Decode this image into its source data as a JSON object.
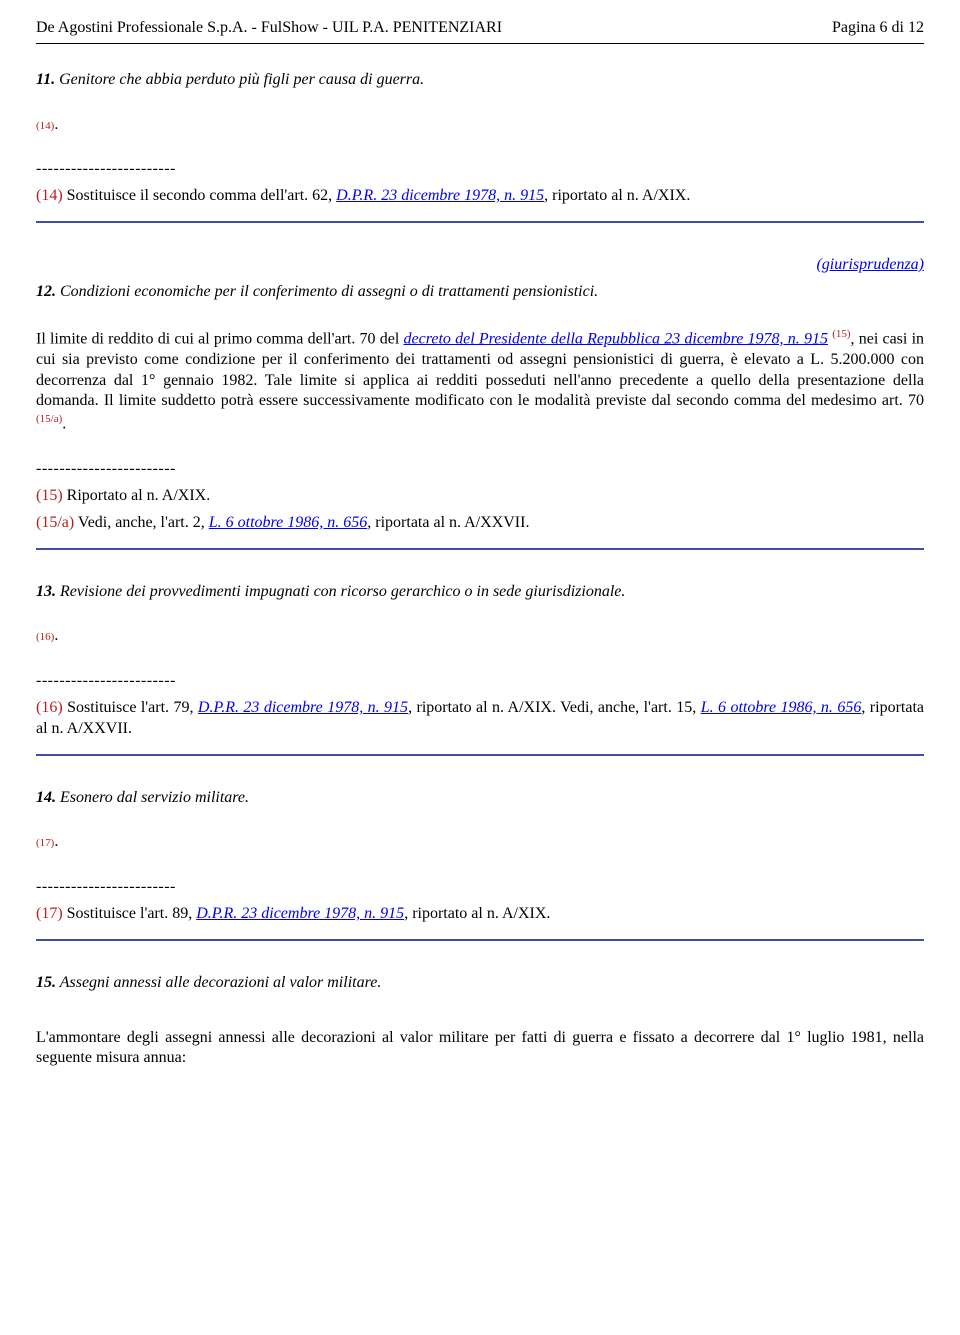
{
  "header": {
    "title_left": "De Agostini Professionale S.p.A. - FulShow - UIL P.A. PENITENZIARI",
    "title_right": "Pagina 6 di 12"
  },
  "dashes": "------------------------",
  "giur": "(giurisprudenza)",
  "sec11": {
    "num": "11.",
    "title": " Genitore che abbia perduto più figli per causa di guerra.",
    "ref14": "(14)",
    "dot": ".",
    "note14_a": "(14)",
    "note14_b": " Sostituisce il secondo comma dell'art. 62, ",
    "note14_link": "D.P.R. 23 dicembre 1978, n. 915",
    "note14_c": ", riportato al n. A/XIX."
  },
  "sec12": {
    "num": "12.",
    "title": " Condizioni economiche per il conferimento di assegni o di trattamenti pensionistici.",
    "body_a": "Il limite di reddito di cui al primo comma dell'art. 70 del ",
    "body_link1": "decreto del Presidente della Repubblica 23 dicembre 1978, n. 915",
    "body_b": " ",
    "sup15": "(15)",
    "body_c": ", nei casi in cui sia previsto come condizione per il conferimento dei trattamenti od assegni pensionistici di guerra, è elevato a L. 5.200.000 con decorrenza dal 1° gennaio 1982. Tale limite si applica ai redditi posseduti nell'anno precedente a quello della presentazione della domanda. Il limite suddetto potrà essere successivamente modificato con le modalità previste dal secondo comma del medesimo art. 70 ",
    "sup15a": "(15/a)",
    "body_d": ".",
    "note15_a": "(15)",
    "note15_b": " Riportato al n. A/XIX.",
    "note15a_a": "(15/a)",
    "note15a_b": " Vedi, anche, l'art. 2, ",
    "note15a_link": "L. 6 ottobre 1986, n. 656",
    "note15a_c": ", riportata al n. A/XXVII."
  },
  "sec13": {
    "num": "13.",
    "title": " Revisione dei provvedimenti impugnati con ricorso gerarchico o in sede giurisdizionale.",
    "ref16": "(16)",
    "dot": ".",
    "note16_a": "(16)",
    "note16_b": " Sostituisce l'art. 79, ",
    "note16_link1": "D.P.R. 23 dicembre 1978, n. 915",
    "note16_c": ", riportato al n. A/XIX. Vedi, anche, l'art. 15, ",
    "note16_link2": "L. 6 ottobre 1986, n. 656",
    "note16_d": ", riportata al n. A/XXVII."
  },
  "sec14": {
    "num": "14.",
    "title": " Esonero dal servizio militare.",
    "ref17": "(17)",
    "dot": ".",
    "note17_a": "(17)",
    "note17_b": " Sostituisce l'art. 89, ",
    "note17_link": "D.P.R. 23 dicembre 1978, n. 915",
    "note17_c": ", riportato al n. A/XIX."
  },
  "sec15": {
    "num": "15.",
    "title": " Assegni annessi alle decorazioni al valor militare.",
    "body": "L'ammontare degli assegni annessi alle decorazioni al valor militare per fatti di guerra e fissato a decorrere dal 1° luglio 1981, nella seguente misura annua:"
  }
}
